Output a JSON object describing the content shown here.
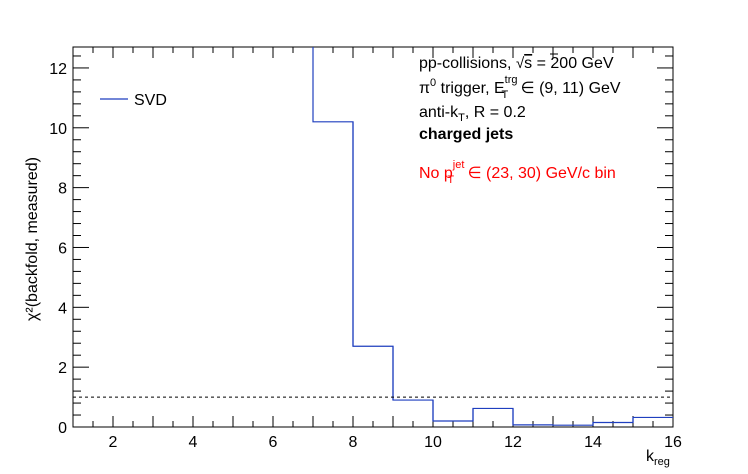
{
  "chart_data": {
    "type": "step",
    "x_label_main": "k",
    "x_label_sub": "reg",
    "y_label": "χ²(backfold, measured)",
    "xlim": [
      1,
      16
    ],
    "ylim": [
      0,
      12.7
    ],
    "x_ticks": [
      "2",
      "4",
      "6",
      "8",
      "10",
      "12",
      "14",
      "16"
    ],
    "y_ticks": [
      "0",
      "2",
      "4",
      "6",
      "8",
      "10",
      "12"
    ],
    "reference_line": {
      "y": 1,
      "style": "dashed"
    },
    "series": [
      {
        "name": "SVD",
        "color": "#1f3fbf",
        "bin_edges": [
          1,
          2,
          3,
          4,
          5,
          6,
          7,
          8,
          9,
          10,
          11,
          12,
          13,
          14,
          15,
          16
        ],
        "values": [
          null,
          null,
          null,
          null,
          null,
          null,
          10.2,
          2.7,
          0.9,
          0.2,
          0.62,
          0.07,
          0.06,
          0.15,
          0.32
        ],
        "first_bin_overflow": true
      }
    ],
    "legend": {
      "entry": "SVD",
      "placement": "top-left"
    },
    "annotations": [
      {
        "text": "pp-collisions, √s = 200 GeV",
        "color": "#000000",
        "bold": false
      },
      {
        "text": "π⁰ trigger, E_T^trg ∈ (9, 11) GeV",
        "color": "#000000",
        "bold": false
      },
      {
        "text": "anti-k_T, R = 0.2",
        "color": "#000000",
        "bold": false
      },
      {
        "text": "charged jets",
        "color": "#000000",
        "bold": true
      },
      {
        "text": "No p_T^jet ∈ (23, 30) GeV/c bin",
        "color": "#ff0000",
        "bold": false
      }
    ]
  }
}
